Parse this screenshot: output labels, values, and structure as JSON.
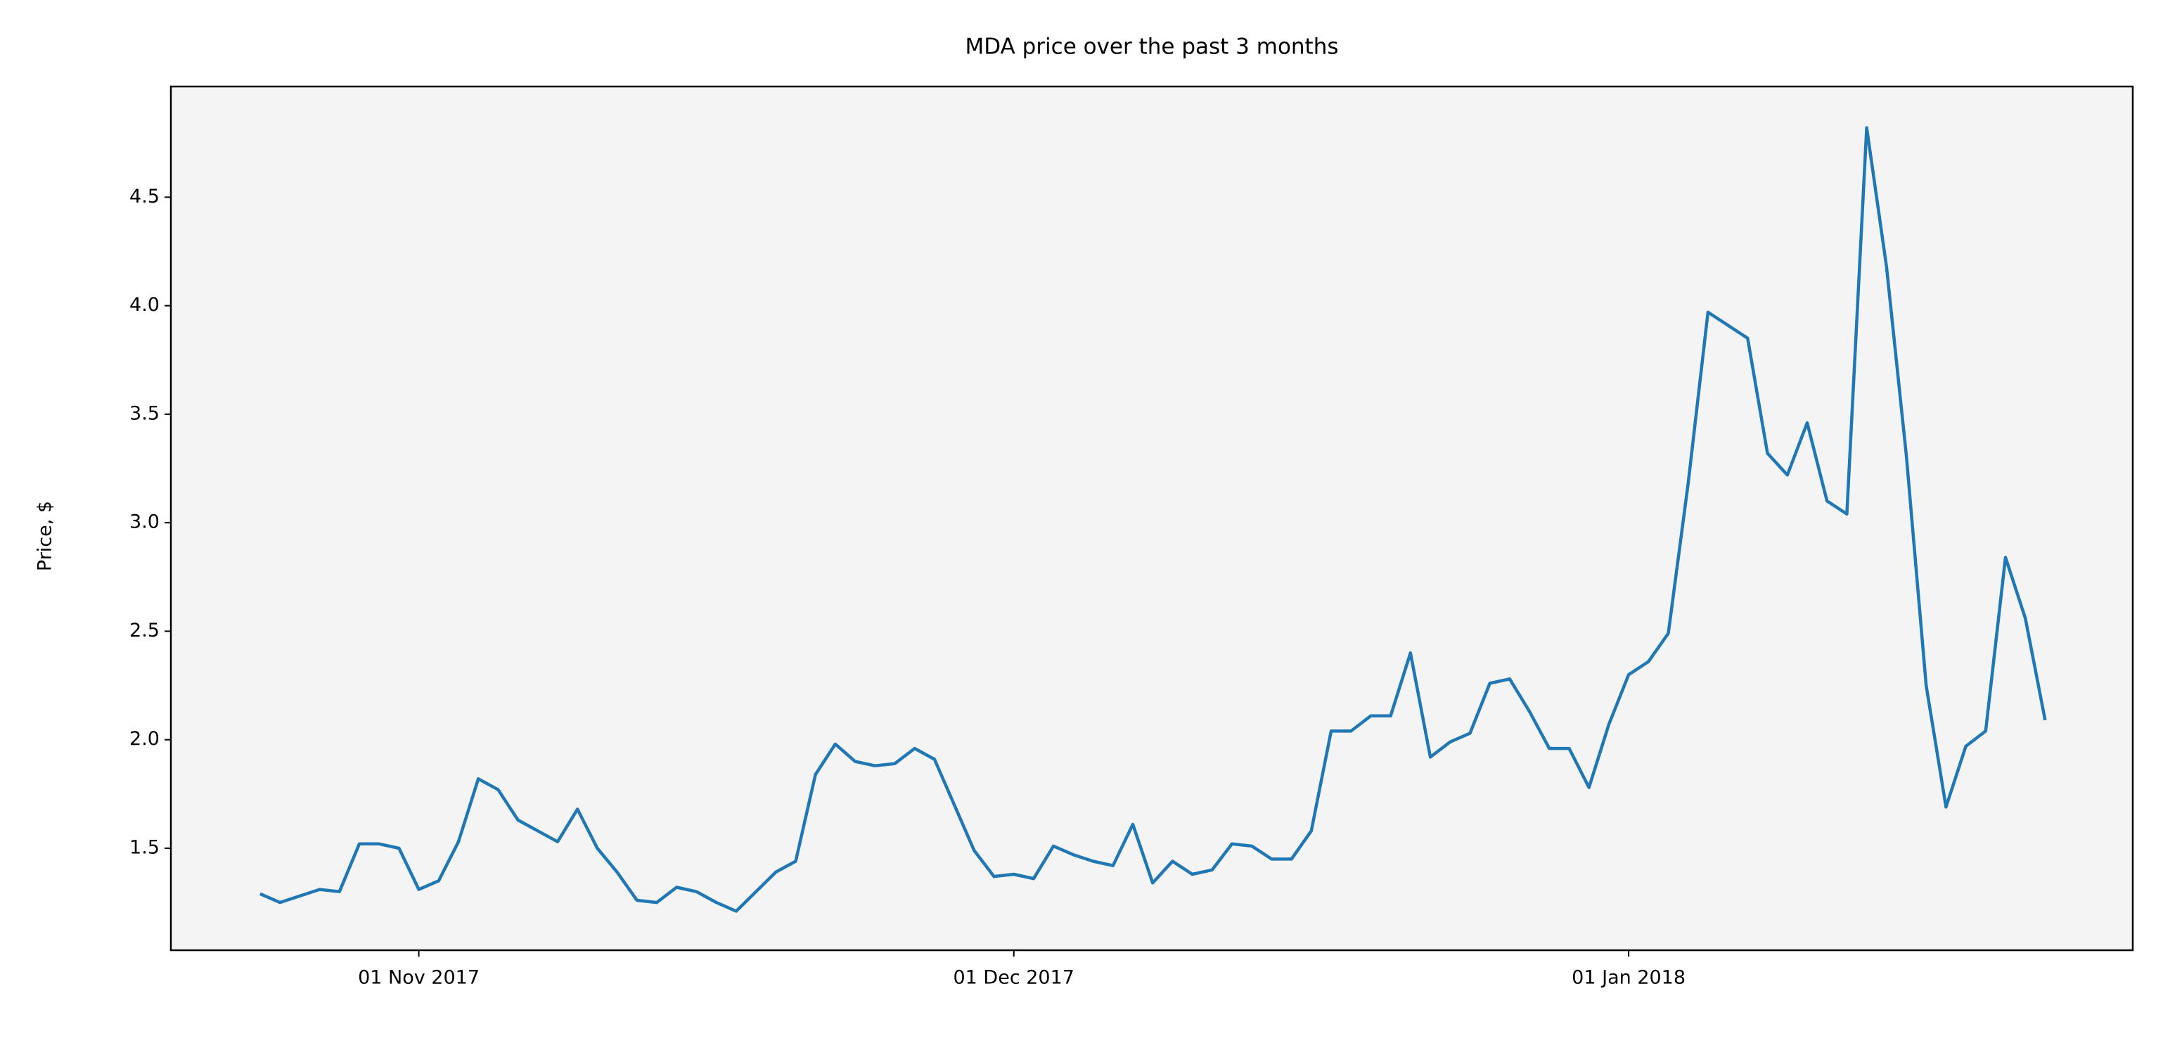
{
  "chart_data": {
    "type": "line",
    "title": "MDA price over the past 3 months",
    "y_label": "Price, $",
    "color": "#1f77b4",
    "background": "#f4f4f5",
    "x": [
      "2017-10-24",
      "2017-10-25",
      "2017-10-26",
      "2017-10-27",
      "2017-10-28",
      "2017-10-29",
      "2017-10-30",
      "2017-10-31",
      "2017-11-01",
      "2017-11-02",
      "2017-11-03",
      "2017-11-04",
      "2017-11-05",
      "2017-11-06",
      "2017-11-07",
      "2017-11-08",
      "2017-11-09",
      "2017-11-10",
      "2017-11-11",
      "2017-11-12",
      "2017-11-13",
      "2017-11-14",
      "2017-11-15",
      "2017-11-16",
      "2017-11-17",
      "2017-11-18",
      "2017-11-19",
      "2017-11-20",
      "2017-11-21",
      "2017-11-22",
      "2017-11-23",
      "2017-11-24",
      "2017-11-25",
      "2017-11-26",
      "2017-11-27",
      "2017-11-28",
      "2017-11-29",
      "2017-11-30",
      "2017-12-01",
      "2017-12-02",
      "2017-12-03",
      "2017-12-04",
      "2017-12-05",
      "2017-12-06",
      "2017-12-07",
      "2017-12-08",
      "2017-12-09",
      "2017-12-10",
      "2017-12-11",
      "2017-12-12",
      "2017-12-13",
      "2017-12-14",
      "2017-12-15",
      "2017-12-16",
      "2017-12-17",
      "2017-12-18",
      "2017-12-19",
      "2017-12-20",
      "2017-12-21",
      "2017-12-22",
      "2017-12-23",
      "2017-12-24",
      "2017-12-25",
      "2017-12-26",
      "2017-12-27",
      "2017-12-28",
      "2017-12-29",
      "2017-12-30",
      "2017-12-31",
      "2018-01-01",
      "2018-01-02",
      "2018-01-03",
      "2018-01-04",
      "2018-01-05",
      "2018-01-06",
      "2018-01-07",
      "2018-01-08",
      "2018-01-09",
      "2018-01-10",
      "2018-01-11",
      "2018-01-12",
      "2018-01-13",
      "2018-01-14",
      "2018-01-15",
      "2018-01-16",
      "2018-01-17",
      "2018-01-18",
      "2018-01-19",
      "2018-01-20",
      "2018-01-21",
      "2018-01-22"
    ],
    "values": [
      1.29,
      1.25,
      1.28,
      1.31,
      1.3,
      1.52,
      1.52,
      1.5,
      1.31,
      1.35,
      1.53,
      1.82,
      1.77,
      1.63,
      1.58,
      1.53,
      1.68,
      1.5,
      1.39,
      1.26,
      1.25,
      1.32,
      1.3,
      1.25,
      1.21,
      1.3,
      1.39,
      1.44,
      1.84,
      1.98,
      1.9,
      1.88,
      1.89,
      1.96,
      1.91,
      1.7,
      1.49,
      1.37,
      1.38,
      1.36,
      1.51,
      1.47,
      1.44,
      1.42,
      1.61,
      1.34,
      1.44,
      1.38,
      1.4,
      1.52,
      1.51,
      1.45,
      1.45,
      1.58,
      2.04,
      2.04,
      2.11,
      2.11,
      2.4,
      1.92,
      1.99,
      2.03,
      2.26,
      2.28,
      2.13,
      1.96,
      1.96,
      1.78,
      2.07,
      2.3,
      2.36,
      2.49,
      3.18,
      3.97,
      3.91,
      3.85,
      3.32,
      3.22,
      3.46,
      3.1,
      3.04,
      4.82,
      4.18,
      3.31,
      2.25,
      1.69,
      1.97,
      2.04,
      2.84,
      2.56,
      2.09
    ],
    "xlim": [
      "2017-10-19T12:00Z",
      "2018-01-26T10:00Z"
    ],
    "xticks": [
      {
        "value": "2017-11-01",
        "label": "01 Nov 2017"
      },
      {
        "value": "2017-12-01",
        "label": "01 Dec 2017"
      },
      {
        "value": "2018-01-01",
        "label": "01 Jan 2018"
      }
    ],
    "ylim": [
      1.03,
      5.01
    ],
    "yticks": [
      1.5,
      {
        "value": 2,
        "label": "2.0"
      },
      2.5,
      {
        "value": 3,
        "label": "3.0"
      },
      3.5,
      {
        "value": 4,
        "label": "4.0"
      },
      4.5
    ]
  }
}
